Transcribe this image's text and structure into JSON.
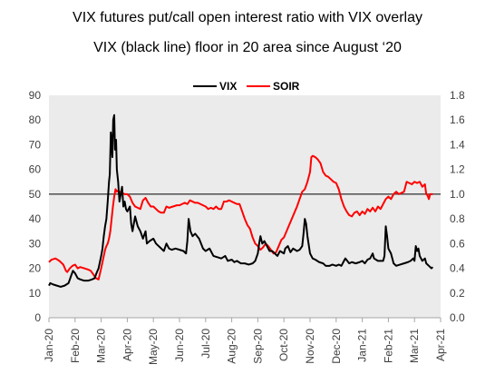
{
  "chart_data": {
    "type": "line",
    "title": "VIX futures put/call open interest ratio with VIX overlay",
    "subtitle": "VIX (black line) floor in 20 area since August ‘20",
    "x_tick_labels": [
      "Jan-20",
      "Feb-20",
      "Mar-20",
      "Apr-20",
      "May-20",
      "Jun-20",
      "Jul-20",
      "Aug-20",
      "Sep-20",
      "Oct-20",
      "Nov-20",
      "Dec-20",
      "Jan-21",
      "Feb-21",
      "Mar-21",
      "Apr-21"
    ],
    "y_left": {
      "min": 0,
      "max": 90,
      "step": 10
    },
    "y_right": {
      "min": 0.0,
      "max": 1.8,
      "step": 0.2
    },
    "y_left_tick_labels": [
      "0",
      "10",
      "20",
      "30",
      "40",
      "50",
      "60",
      "70",
      "80",
      "90"
    ],
    "y_right_tick_labels": [
      "0.0",
      "0.2",
      "0.4",
      "0.6",
      "0.8",
      "1.0",
      "1.2",
      "1.4",
      "1.6",
      "1.8"
    ],
    "reference_line": {
      "axis": "left",
      "value": 50,
      "color": "#000000"
    },
    "legend": {
      "position": "top",
      "entries": [
        "VIX",
        "SOIR"
      ]
    },
    "series": [
      {
        "name": "VIX",
        "color": "#000000",
        "axis": "left",
        "points": [
          [
            0.0,
            13
          ],
          [
            0.05,
            14
          ],
          [
            0.15,
            13.5
          ],
          [
            0.3,
            13
          ],
          [
            0.45,
            12.5
          ],
          [
            0.6,
            13
          ],
          [
            0.75,
            14
          ],
          [
            0.85,
            17
          ],
          [
            0.92,
            19
          ],
          [
            1.0,
            18
          ],
          [
            1.1,
            16
          ],
          [
            1.2,
            15.5
          ],
          [
            1.35,
            15
          ],
          [
            1.5,
            15
          ],
          [
            1.65,
            15.5
          ],
          [
            1.75,
            16
          ],
          [
            1.82,
            18
          ],
          [
            1.9,
            20
          ],
          [
            2.0,
            25
          ],
          [
            2.05,
            28
          ],
          [
            2.1,
            33
          ],
          [
            2.15,
            37
          ],
          [
            2.2,
            40
          ],
          [
            2.25,
            47
          ],
          [
            2.3,
            55
          ],
          [
            2.33,
            58
          ],
          [
            2.37,
            75
          ],
          [
            2.4,
            70
          ],
          [
            2.43,
            65
          ],
          [
            2.46,
            80
          ],
          [
            2.5,
            82
          ],
          [
            2.53,
            68
          ],
          [
            2.57,
            72
          ],
          [
            2.6,
            60
          ],
          [
            2.65,
            55
          ],
          [
            2.7,
            47
          ],
          [
            2.75,
            50
          ],
          [
            2.8,
            53
          ],
          [
            2.85,
            45
          ],
          [
            2.9,
            47
          ],
          [
            2.95,
            44
          ],
          [
            3.0,
            43
          ],
          [
            3.1,
            45
          ],
          [
            3.15,
            38
          ],
          [
            3.2,
            35
          ],
          [
            3.3,
            41
          ],
          [
            3.4,
            37
          ],
          [
            3.5,
            35
          ],
          [
            3.6,
            32
          ],
          [
            3.7,
            35
          ],
          [
            3.75,
            30
          ],
          [
            3.85,
            31
          ],
          [
            4.0,
            32
          ],
          [
            4.1,
            30
          ],
          [
            4.2,
            29
          ],
          [
            4.3,
            28
          ],
          [
            4.4,
            27
          ],
          [
            4.5,
            30
          ],
          [
            4.6,
            28
          ],
          [
            4.7,
            27.5
          ],
          [
            4.85,
            28
          ],
          [
            5.0,
            27.5
          ],
          [
            5.15,
            27
          ],
          [
            5.25,
            26
          ],
          [
            5.3,
            31
          ],
          [
            5.35,
            40
          ],
          [
            5.42,
            35
          ],
          [
            5.5,
            33
          ],
          [
            5.6,
            34
          ],
          [
            5.75,
            32
          ],
          [
            5.9,
            28
          ],
          [
            6.0,
            27
          ],
          [
            6.15,
            28
          ],
          [
            6.3,
            25
          ],
          [
            6.45,
            24.5
          ],
          [
            6.6,
            24
          ],
          [
            6.75,
            25
          ],
          [
            6.85,
            23
          ],
          [
            7.0,
            23.5
          ],
          [
            7.1,
            22.5
          ],
          [
            7.2,
            23
          ],
          [
            7.35,
            22
          ],
          [
            7.5,
            22
          ],
          [
            7.65,
            21.5
          ],
          [
            7.8,
            22
          ],
          [
            7.9,
            23
          ],
          [
            8.0,
            26
          ],
          [
            8.05,
            30
          ],
          [
            8.1,
            33
          ],
          [
            8.17,
            30
          ],
          [
            8.25,
            31
          ],
          [
            8.35,
            29
          ],
          [
            8.45,
            27
          ],
          [
            8.55,
            27
          ],
          [
            8.65,
            26
          ],
          [
            8.75,
            25
          ],
          [
            8.85,
            27
          ],
          [
            9.0,
            26
          ],
          [
            9.05,
            28
          ],
          [
            9.15,
            29
          ],
          [
            9.25,
            26.5
          ],
          [
            9.35,
            28
          ],
          [
            9.5,
            27
          ],
          [
            9.6,
            27.5
          ],
          [
            9.7,
            29
          ],
          [
            9.75,
            34
          ],
          [
            9.8,
            40
          ],
          [
            9.85,
            38
          ],
          [
            9.9,
            33
          ],
          [
            10.0,
            26
          ],
          [
            10.1,
            24
          ],
          [
            10.2,
            23.5
          ],
          [
            10.35,
            22.5
          ],
          [
            10.5,
            22
          ],
          [
            10.6,
            21
          ],
          [
            10.75,
            21
          ],
          [
            10.85,
            21.5
          ],
          [
            11.0,
            21
          ],
          [
            11.1,
            21.5
          ],
          [
            11.2,
            21
          ],
          [
            11.3,
            23
          ],
          [
            11.35,
            24
          ],
          [
            11.5,
            22
          ],
          [
            11.6,
            22.5
          ],
          [
            11.75,
            22
          ],
          [
            11.9,
            22.5
          ],
          [
            12.0,
            23
          ],
          [
            12.1,
            22
          ],
          [
            12.2,
            23.5
          ],
          [
            12.3,
            24
          ],
          [
            12.4,
            26
          ],
          [
            12.45,
            24
          ],
          [
            12.6,
            23
          ],
          [
            12.7,
            23
          ],
          [
            12.8,
            23
          ],
          [
            12.85,
            25
          ],
          [
            12.9,
            37
          ],
          [
            12.95,
            33
          ],
          [
            13.0,
            28
          ],
          [
            13.1,
            26
          ],
          [
            13.2,
            22
          ],
          [
            13.3,
            21
          ],
          [
            13.45,
            21.5
          ],
          [
            13.6,
            22
          ],
          [
            13.75,
            22.5
          ],
          [
            13.85,
            23
          ],
          [
            13.95,
            24
          ],
          [
            14.0,
            23
          ],
          [
            14.05,
            29
          ],
          [
            14.1,
            27
          ],
          [
            14.15,
            28
          ],
          [
            14.2,
            25
          ],
          [
            14.3,
            23
          ],
          [
            14.4,
            24
          ],
          [
            14.45,
            22
          ],
          [
            14.55,
            21
          ],
          [
            14.65,
            20
          ],
          [
            14.7,
            20.5
          ]
        ]
      },
      {
        "name": "SOIR",
        "color": "#ff0000",
        "axis": "right",
        "points": [
          [
            0.0,
            0.45
          ],
          [
            0.1,
            0.47
          ],
          [
            0.25,
            0.48
          ],
          [
            0.4,
            0.46
          ],
          [
            0.55,
            0.43
          ],
          [
            0.65,
            0.38
          ],
          [
            0.7,
            0.37
          ],
          [
            0.8,
            0.4
          ],
          [
            0.9,
            0.42
          ],
          [
            1.0,
            0.43
          ],
          [
            1.1,
            0.4
          ],
          [
            1.2,
            0.41
          ],
          [
            1.35,
            0.4
          ],
          [
            1.5,
            0.39
          ],
          [
            1.6,
            0.38
          ],
          [
            1.7,
            0.35
          ],
          [
            1.8,
            0.32
          ],
          [
            1.9,
            0.31
          ],
          [
            2.0,
            0.4
          ],
          [
            2.05,
            0.45
          ],
          [
            2.1,
            0.5
          ],
          [
            2.15,
            0.55
          ],
          [
            2.2,
            0.58
          ],
          [
            2.25,
            0.6
          ],
          [
            2.3,
            0.64
          ],
          [
            2.35,
            0.7
          ],
          [
            2.4,
            0.8
          ],
          [
            2.45,
            0.9
          ],
          [
            2.5,
            0.98
          ],
          [
            2.55,
            1.04
          ],
          [
            2.6,
            1.02
          ],
          [
            2.65,
            1.03
          ],
          [
            2.7,
            1.02
          ],
          [
            2.8,
            1.01
          ],
          [
            2.9,
            1.0
          ],
          [
            3.0,
            1.0
          ],
          [
            3.1,
            0.98
          ],
          [
            3.2,
            0.93
          ],
          [
            3.3,
            0.9
          ],
          [
            3.4,
            0.89
          ],
          [
            3.5,
            0.88
          ],
          [
            3.6,
            0.95
          ],
          [
            3.7,
            0.97
          ],
          [
            3.8,
            0.93
          ],
          [
            3.9,
            0.9
          ],
          [
            4.0,
            0.9
          ],
          [
            4.1,
            0.88
          ],
          [
            4.2,
            0.86
          ],
          [
            4.3,
            0.85
          ],
          [
            4.4,
            0.85
          ],
          [
            4.5,
            0.9
          ],
          [
            4.6,
            0.89
          ],
          [
            4.75,
            0.9
          ],
          [
            4.9,
            0.91
          ],
          [
            5.0,
            0.91
          ],
          [
            5.1,
            0.92
          ],
          [
            5.2,
            0.93
          ],
          [
            5.3,
            0.92
          ],
          [
            5.4,
            0.95
          ],
          [
            5.5,
            0.94
          ],
          [
            5.6,
            0.93
          ],
          [
            5.7,
            0.93
          ],
          [
            5.8,
            0.92
          ],
          [
            5.9,
            0.91
          ],
          [
            6.0,
            0.9
          ],
          [
            6.1,
            0.88
          ],
          [
            6.2,
            0.89
          ],
          [
            6.3,
            0.88
          ],
          [
            6.4,
            0.9
          ],
          [
            6.5,
            0.88
          ],
          [
            6.6,
            0.88
          ],
          [
            6.7,
            0.94
          ],
          [
            6.8,
            0.94
          ],
          [
            6.9,
            0.95
          ],
          [
            7.0,
            0.94
          ],
          [
            7.1,
            0.93
          ],
          [
            7.2,
            0.92
          ],
          [
            7.3,
            0.92
          ],
          [
            7.4,
            0.86
          ],
          [
            7.5,
            0.8
          ],
          [
            7.6,
            0.75
          ],
          [
            7.7,
            0.72
          ],
          [
            7.8,
            0.65
          ],
          [
            7.9,
            0.6
          ],
          [
            8.0,
            0.58
          ],
          [
            8.1,
            0.55
          ],
          [
            8.2,
            0.57
          ],
          [
            8.3,
            0.6
          ],
          [
            8.4,
            0.58
          ],
          [
            8.5,
            0.55
          ],
          [
            8.6,
            0.52
          ],
          [
            8.7,
            0.53
          ],
          [
            8.8,
            0.58
          ],
          [
            8.9,
            0.63
          ],
          [
            9.0,
            0.65
          ],
          [
            9.1,
            0.7
          ],
          [
            9.2,
            0.75
          ],
          [
            9.3,
            0.8
          ],
          [
            9.4,
            0.85
          ],
          [
            9.5,
            0.9
          ],
          [
            9.6,
            0.96
          ],
          [
            9.7,
            1.02
          ],
          [
            9.8,
            1.04
          ],
          [
            9.9,
            1.1
          ],
          [
            10.0,
            1.18
          ],
          [
            10.05,
            1.3
          ],
          [
            10.1,
            1.31
          ],
          [
            10.2,
            1.3
          ],
          [
            10.3,
            1.28
          ],
          [
            10.4,
            1.25
          ],
          [
            10.5,
            1.18
          ],
          [
            10.6,
            1.15
          ],
          [
            10.7,
            1.14
          ],
          [
            10.8,
            1.12
          ],
          [
            10.9,
            1.1
          ],
          [
            11.0,
            1.09
          ],
          [
            11.1,
            1.04
          ],
          [
            11.2,
            0.96
          ],
          [
            11.3,
            0.9
          ],
          [
            11.4,
            0.86
          ],
          [
            11.5,
            0.83
          ],
          [
            11.6,
            0.82
          ],
          [
            11.7,
            0.85
          ],
          [
            11.8,
            0.86
          ],
          [
            11.9,
            0.83
          ],
          [
            12.0,
            0.86
          ],
          [
            12.1,
            0.84
          ],
          [
            12.2,
            0.88
          ],
          [
            12.3,
            0.86
          ],
          [
            12.4,
            0.89
          ],
          [
            12.5,
            0.86
          ],
          [
            12.6,
            0.9
          ],
          [
            12.7,
            0.88
          ],
          [
            12.8,
            0.92
          ],
          [
            12.9,
            0.96
          ],
          [
            13.0,
            0.98
          ],
          [
            13.1,
            0.96
          ],
          [
            13.2,
            1.0
          ],
          [
            13.3,
            1.02
          ],
          [
            13.4,
            1.0
          ],
          [
            13.5,
            1.01
          ],
          [
            13.6,
            1.02
          ],
          [
            13.7,
            1.1
          ],
          [
            13.8,
            1.09
          ],
          [
            13.9,
            1.08
          ],
          [
            14.0,
            1.1
          ],
          [
            14.1,
            1.09
          ],
          [
            14.2,
            1.1
          ],
          [
            14.3,
            1.06
          ],
          [
            14.4,
            1.08
          ],
          [
            14.45,
            1.0
          ],
          [
            14.5,
            0.99
          ],
          [
            14.55,
            0.96
          ],
          [
            14.6,
            1.0
          ],
          [
            14.7,
            1.0
          ]
        ]
      }
    ]
  }
}
